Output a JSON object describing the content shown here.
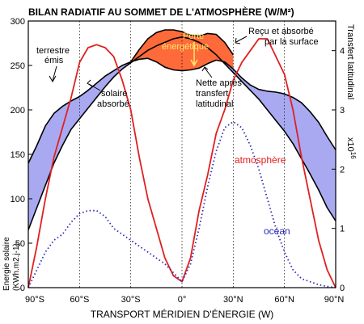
{
  "chart_data": {
    "type": "line",
    "title": "BILAN RADIATIF AU SOMMET DE L'ATMOSPHÈRE (W/M²)",
    "xlabel": "TRANSPORT MÉRIDIEN D'ÉNERGIE (W)",
    "ylabel_left": "Energie solaire",
    "ylabel_left_units": "(KWh.m2.j-1)",
    "ylabel_right": "Transfert latitudinal",
    "ylabel_right_exponent": "x10",
    "ylabel_right_exponent_power": "16",
    "x_ticks": [
      "90°S",
      "60°S",
      "30°S",
      "0°",
      "30°N",
      "60°N",
      "90°N"
    ],
    "x_tick_values": [
      -90,
      -60,
      -30,
      0,
      30,
      60,
      90
    ],
    "y_left_ticks": [
      "0",
      "50",
      "100",
      "150",
      "200",
      "250",
      "300"
    ],
    "y_left_tick_values": [
      0,
      50,
      100,
      150,
      200,
      250,
      300
    ],
    "y_right_ticks": [
      "0",
      "1",
      "2",
      "3",
      "4"
    ],
    "y_right_tick_values": [
      0,
      1,
      2,
      3,
      4
    ],
    "ylim_left": [
      0,
      300
    ],
    "ylim_right": [
      0,
      4.5
    ],
    "xlim": [
      -90,
      90
    ],
    "grid": "vertical dotted lines at 30° intervals",
    "colors": {
      "surplus_fill": "#ff6a3a",
      "deficit_fill": "#a9a9f2",
      "atmosphere": "#e02020",
      "ocean": "#2a2ab8",
      "axis": "#000000"
    },
    "annotations": {
      "terrestre": "terrestre",
      "emis": "émis",
      "solaire": "solaire",
      "absorbe": "absorbé",
      "perte1": "Perte",
      "perte2": "énergétique",
      "recu1": "Reçu et absorbé",
      "recu2": "par la surface",
      "nette1": "Nette après",
      "nette2": "transfert",
      "nette3": "latitudinal",
      "atmosphere": "atmosphère",
      "ocean": "océan"
    },
    "series": [
      {
        "name": "solaire absorbé",
        "axis": "left",
        "x": [
          -90,
          -85,
          -80,
          -75,
          -70,
          -65,
          -60,
          -55,
          -50,
          -45,
          -40,
          -35,
          -30,
          -25,
          -20,
          -15,
          -10,
          -5,
          0,
          5,
          10,
          15,
          20,
          25,
          30,
          35,
          40,
          45,
          50,
          55,
          60,
          65,
          70,
          75,
          80,
          85,
          90
        ],
        "values": [
          65,
          90,
          115,
          140,
          160,
          178,
          190,
          202,
          214,
          226,
          237,
          246,
          253,
          260,
          267,
          272,
          276,
          280,
          282,
          280,
          276,
          270,
          262,
          252,
          242,
          232,
          222,
          212,
          200,
          188,
          176,
          162,
          145,
          128,
          110,
          90,
          75
        ]
      },
      {
        "name": "terrestre émis",
        "axis": "left",
        "x": [
          -90,
          -85,
          -80,
          -75,
          -70,
          -65,
          -60,
          -55,
          -50,
          -45,
          -40,
          -35,
          -30,
          -25,
          -20,
          -15,
          -10,
          -5,
          0,
          5,
          10,
          15,
          20,
          25,
          30,
          35,
          40,
          45,
          50,
          55,
          60,
          65,
          70,
          75,
          80,
          85,
          90
        ],
        "values": [
          140,
          160,
          182,
          196,
          204,
          210,
          215,
          222,
          230,
          238,
          244,
          250,
          254,
          257,
          258,
          254,
          248,
          245,
          244,
          245,
          247,
          252,
          256,
          254,
          246,
          236,
          228,
          223,
          221,
          220,
          218,
          214,
          208,
          198,
          186,
          170,
          155
        ]
      },
      {
        "name": "reçu par la surface",
        "axis": "left",
        "x": [
          -30,
          -25,
          -20,
          -15,
          -10,
          -5,
          0,
          5,
          10,
          15,
          20,
          25,
          30
        ],
        "values": [
          254,
          268,
          280,
          287,
          290,
          290,
          288,
          284,
          283,
          286,
          285,
          276,
          262
        ]
      },
      {
        "name": "atmosphère",
        "axis": "right",
        "x": [
          -90,
          -85,
          -80,
          -75,
          -70,
          -65,
          -60,
          -55,
          -50,
          -45,
          -40,
          -35,
          -30,
          -25,
          -20,
          -15,
          -10,
          -5,
          0,
          5,
          10,
          15,
          20,
          25,
          30,
          35,
          40,
          45,
          50,
          55,
          60,
          65,
          70,
          75,
          80,
          85,
          90
        ],
        "values": [
          0,
          0.7,
          1.5,
          2.2,
          2.7,
          3.2,
          3.8,
          4.05,
          4.1,
          4.05,
          3.9,
          3.5,
          3.0,
          2.2,
          1.5,
          1.0,
          0.5,
          0.2,
          0.1,
          0.5,
          1.3,
          1.9,
          2.6,
          3.0,
          3.5,
          3.8,
          4.0,
          4.2,
          4.2,
          3.9,
          3.6,
          3.0,
          2.2,
          1.5,
          0.8,
          0.3,
          0
        ]
      },
      {
        "name": "océan",
        "axis": "right",
        "x": [
          -90,
          -85,
          -80,
          -75,
          -70,
          -65,
          -60,
          -55,
          -50,
          -45,
          -40,
          -35,
          -30,
          -25,
          -20,
          -15,
          -10,
          -5,
          0,
          5,
          10,
          15,
          20,
          25,
          30,
          35,
          40,
          45,
          50,
          55,
          60,
          65,
          70,
          75,
          80,
          85,
          90
        ],
        "values": [
          0,
          0.3,
          0.6,
          0.8,
          0.9,
          1.1,
          1.25,
          1.3,
          1.3,
          1.2,
          1.0,
          0.9,
          0.8,
          0.7,
          0.6,
          0.5,
          0.4,
          0.25,
          0.1,
          0.4,
          1.0,
          1.7,
          2.3,
          2.7,
          2.8,
          2.7,
          2.4,
          2.0,
          1.5,
          1.0,
          0.6,
          0.3,
          0.15,
          0.1,
          0.05,
          0.02,
          0
        ]
      }
    ]
  }
}
